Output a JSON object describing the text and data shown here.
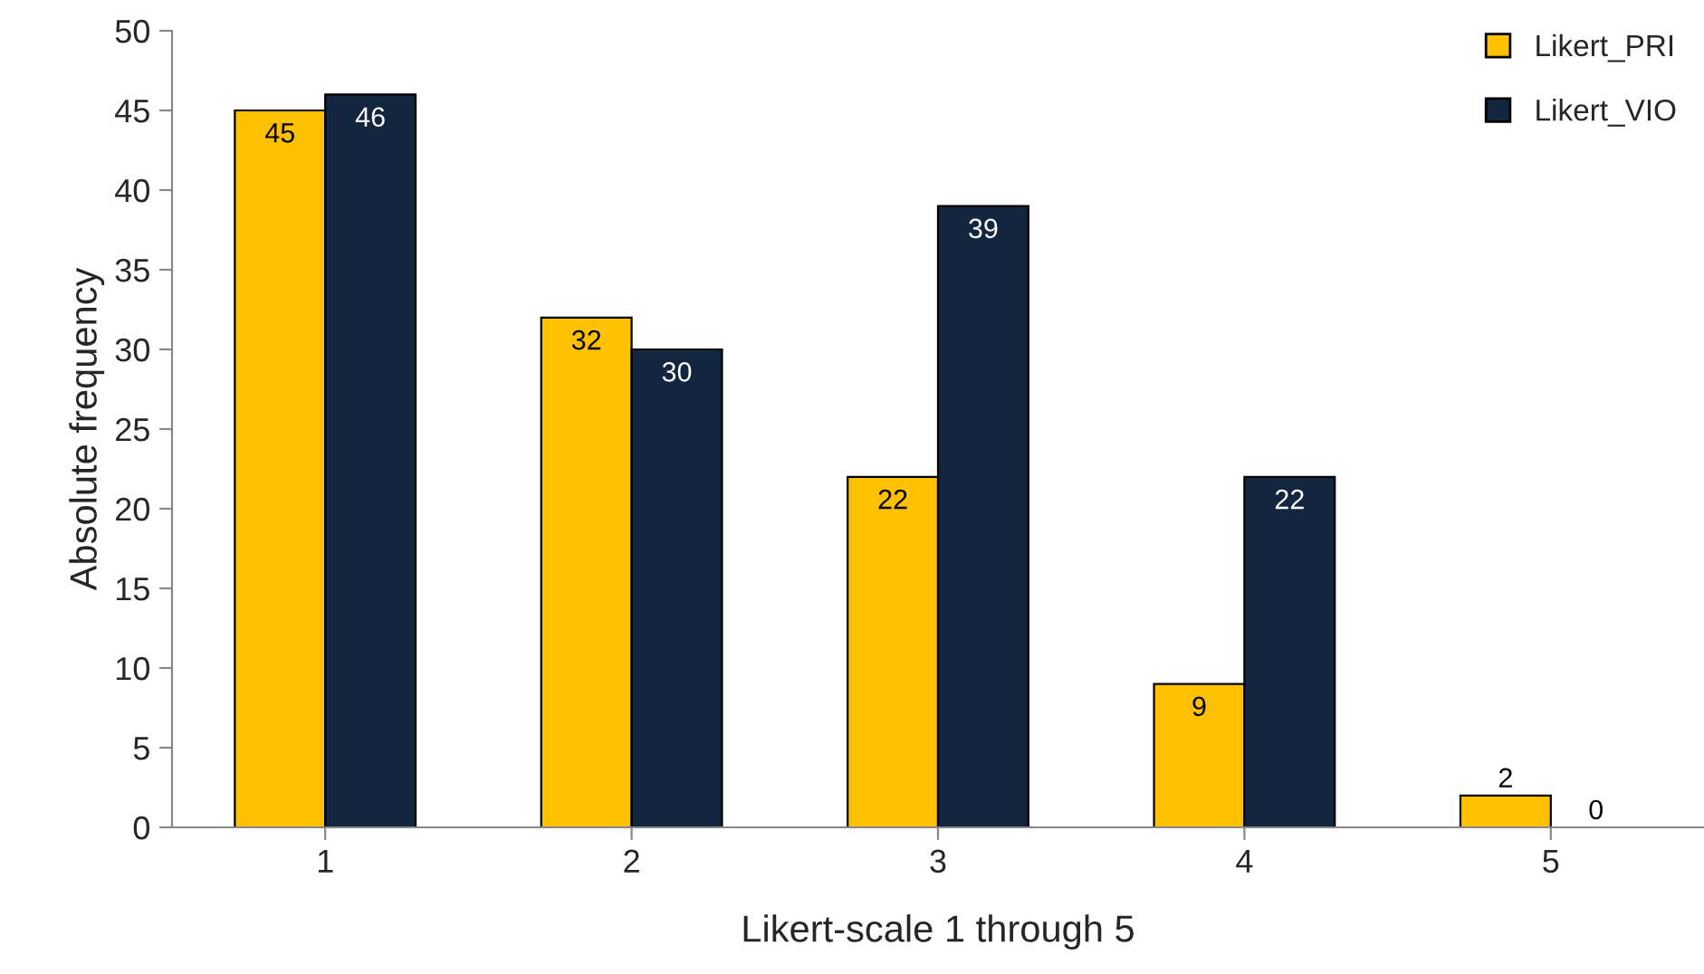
{
  "chart_data": {
    "type": "bar",
    "xlabel": "Likert-scale 1 through 5",
    "ylabel": "Absolute frequency",
    "categories": [
      "1",
      "2",
      "3",
      "4",
      "5"
    ],
    "series": [
      {
        "name": "Likert_PRI",
        "color": "#ffc000",
        "values": [
          45,
          32,
          22,
          9,
          2
        ]
      },
      {
        "name": "Likert_VIO",
        "color": "#13263f",
        "values": [
          46,
          30,
          39,
          22,
          0
        ]
      }
    ],
    "ylim": [
      0,
      50
    ],
    "yticks": [
      0,
      5,
      10,
      15,
      20,
      25,
      30,
      35,
      40,
      45,
      50
    ],
    "data_labels": true,
    "legend": "top right",
    "grid": false
  }
}
